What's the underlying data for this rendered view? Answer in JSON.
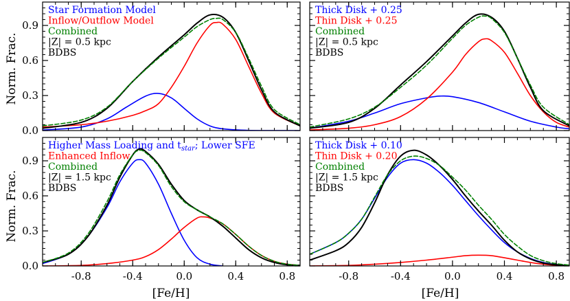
{
  "figure": {
    "ylabel": "Norm. Frac.",
    "xlabel": "[Fe/H]"
  },
  "colors": {
    "blue": "#0000ff",
    "red": "#ff0000",
    "green": "#008000",
    "black": "#000000"
  },
  "chart_data": [
    {
      "type": "line",
      "panel": "top-left",
      "xlim": [
        -1.1,
        0.9
      ],
      "ylim": [
        0.0,
        1.1
      ],
      "xticks": [
        -0.8,
        -0.4,
        0.0,
        0.4,
        0.8
      ],
      "xticklabels": [
        "-0.8",
        "-0.4",
        "0.0",
        "0.4",
        "0.8"
      ],
      "yticks": [
        0.0,
        0.3,
        0.6,
        0.9
      ],
      "yticklabels": [
        "0.0",
        "0.3",
        "0.6",
        "0.9"
      ],
      "show_xticklabels": false,
      "show_yticklabels": true,
      "legend": [
        {
          "text": "Star Formation Model",
          "color": "blue"
        },
        {
          "text": "Inflow/Outflow Model",
          "color": "red"
        },
        {
          "text": "Combined",
          "color": "green"
        },
        {
          "text": "|Z| = 0.5 kpc",
          "color": "black"
        },
        {
          "text": "BDBS",
          "color": "black"
        }
      ],
      "series": [
        {
          "name": "Star Formation Model",
          "color": "blue",
          "style": "solid",
          "width": 1.6,
          "x": [
            -1.1,
            -0.8,
            -0.6,
            -0.45,
            -0.3,
            -0.2,
            -0.1,
            0.0,
            0.1,
            0.2,
            0.3,
            0.5,
            0.9
          ],
          "y": [
            0.005,
            0.03,
            0.1,
            0.2,
            0.295,
            0.318,
            0.28,
            0.19,
            0.1,
            0.04,
            0.015,
            0.002,
            0.0
          ]
        },
        {
          "name": "Inflow/Outflow Model",
          "color": "red",
          "style": "solid",
          "width": 1.6,
          "x": [
            -1.1,
            -0.8,
            -0.6,
            -0.4,
            -0.3,
            -0.2,
            -0.1,
            0.0,
            0.1,
            0.2,
            0.25,
            0.3,
            0.4,
            0.5,
            0.6,
            0.7,
            0.9
          ],
          "y": [
            0.03,
            0.05,
            0.08,
            0.13,
            0.17,
            0.23,
            0.37,
            0.55,
            0.75,
            0.9,
            0.925,
            0.91,
            0.78,
            0.55,
            0.32,
            0.15,
            0.04
          ]
        },
        {
          "name": "Combined",
          "color": "green",
          "style": "dashed",
          "width": 1.6,
          "x": [
            -1.1,
            -0.8,
            -0.6,
            -0.4,
            -0.2,
            0.0,
            0.1,
            0.2,
            0.25,
            0.3,
            0.4,
            0.5,
            0.6,
            0.7,
            0.9
          ],
          "y": [
            0.04,
            0.09,
            0.2,
            0.42,
            0.62,
            0.8,
            0.89,
            0.95,
            0.96,
            0.95,
            0.84,
            0.62,
            0.38,
            0.18,
            0.05
          ]
        },
        {
          "name": "BDBS",
          "color": "black",
          "style": "solid",
          "width": 2.0,
          "x": [
            -1.1,
            -0.8,
            -0.6,
            -0.4,
            -0.2,
            0.0,
            0.1,
            0.2,
            0.3,
            0.4,
            0.5,
            0.6,
            0.7,
            0.9
          ],
          "y": [
            0.02,
            0.07,
            0.19,
            0.42,
            0.63,
            0.82,
            0.92,
            0.99,
            0.97,
            0.84,
            0.6,
            0.35,
            0.16,
            0.04
          ]
        }
      ]
    },
    {
      "type": "line",
      "panel": "top-right",
      "xlim": [
        -1.1,
        0.9
      ],
      "ylim": [
        0.0,
        1.1
      ],
      "xticks": [
        -0.8,
        -0.4,
        0.0,
        0.4,
        0.8
      ],
      "xticklabels": [
        "-0.8",
        "-0.4",
        "0.0",
        "0.4",
        "0.8"
      ],
      "yticks": [
        0.0,
        0.3,
        0.6,
        0.9
      ],
      "yticklabels": [
        "0.0",
        "0.3",
        "0.6",
        "0.9"
      ],
      "show_xticklabels": false,
      "show_yticklabels": false,
      "legend": [
        {
          "text": "Thick Disk + 0.25",
          "color": "blue"
        },
        {
          "text": "Thin Disk + 0.25",
          "color": "red"
        },
        {
          "text": "Combined",
          "color": "green"
        },
        {
          "text": "|Z| = 0.5 kpc",
          "color": "black"
        },
        {
          "text": "BDBS",
          "color": "black"
        }
      ],
      "series": [
        {
          "name": "Thick Disk + 0.25",
          "color": "blue",
          "style": "solid",
          "width": 1.6,
          "x": [
            -1.1,
            -0.8,
            -0.6,
            -0.4,
            -0.2,
            -0.1,
            0.0,
            0.2,
            0.4,
            0.6,
            0.8,
            0.9
          ],
          "y": [
            0.02,
            0.08,
            0.15,
            0.23,
            0.28,
            0.295,
            0.29,
            0.24,
            0.16,
            0.08,
            0.03,
            0.015
          ]
        },
        {
          "name": "Thin Disk + 0.25",
          "color": "red",
          "style": "solid",
          "width": 1.6,
          "x": [
            -1.1,
            -0.8,
            -0.6,
            -0.4,
            -0.2,
            0.0,
            0.1,
            0.2,
            0.25,
            0.3,
            0.4,
            0.5,
            0.6,
            0.7,
            0.8,
            0.9
          ],
          "y": [
            0.005,
            0.02,
            0.05,
            0.12,
            0.27,
            0.5,
            0.65,
            0.76,
            0.785,
            0.77,
            0.67,
            0.49,
            0.3,
            0.16,
            0.07,
            0.03
          ]
        },
        {
          "name": "Combined",
          "color": "green",
          "style": "dashed",
          "width": 1.6,
          "x": [
            -1.1,
            -0.8,
            -0.6,
            -0.4,
            -0.2,
            0.0,
            0.1,
            0.2,
            0.25,
            0.3,
            0.4,
            0.5,
            0.6,
            0.7,
            0.9
          ],
          "y": [
            0.03,
            0.1,
            0.2,
            0.37,
            0.56,
            0.79,
            0.9,
            0.97,
            0.98,
            0.96,
            0.84,
            0.62,
            0.39,
            0.2,
            0.05
          ]
        },
        {
          "name": "BDBS",
          "color": "black",
          "style": "solid",
          "width": 2.0,
          "x": [
            -1.1,
            -0.8,
            -0.6,
            -0.4,
            -0.2,
            0.0,
            0.1,
            0.2,
            0.3,
            0.4,
            0.5,
            0.6,
            0.7,
            0.9
          ],
          "y": [
            0.02,
            0.07,
            0.19,
            0.39,
            0.59,
            0.81,
            0.92,
            0.995,
            0.97,
            0.85,
            0.62,
            0.37,
            0.17,
            0.04
          ]
        }
      ]
    },
    {
      "type": "line",
      "panel": "bottom-left",
      "xlim": [
        -1.1,
        0.9
      ],
      "ylim": [
        0.0,
        1.1
      ],
      "xticks": [
        -0.8,
        -0.4,
        0.0,
        0.4,
        0.8
      ],
      "xticklabels": [
        "-0.8",
        "-0.4",
        "0.0",
        "0.4",
        "0.8"
      ],
      "yticks": [
        0.0,
        0.3,
        0.6,
        0.9
      ],
      "yticklabels": [
        "0.0",
        "0.3",
        "0.6",
        "0.9"
      ],
      "show_xticklabels": true,
      "show_yticklabels": true,
      "legend": [
        {
          "text": "Higher Mass Loading and t",
          "sub": "star",
          "tail": "; Lower SFE",
          "color": "blue"
        },
        {
          "text": "Enhanced Inflow",
          "color": "red"
        },
        {
          "text": "Combined",
          "color": "green"
        },
        {
          "text": "|Z| = 1.5 kpc",
          "color": "black"
        },
        {
          "text": "BDBS",
          "color": "black"
        }
      ],
      "series": [
        {
          "name": "Higher Mass Loading and tstar; Lower SFE",
          "color": "blue",
          "style": "solid",
          "width": 1.6,
          "x": [
            -1.1,
            -0.9,
            -0.75,
            -0.6,
            -0.5,
            -0.4,
            -0.35,
            -0.3,
            -0.2,
            -0.1,
            0.0,
            0.1,
            0.2,
            0.3
          ],
          "y": [
            0.02,
            0.1,
            0.25,
            0.5,
            0.72,
            0.88,
            0.91,
            0.88,
            0.7,
            0.45,
            0.22,
            0.07,
            0.015,
            0.0
          ]
        },
        {
          "name": "Enhanced Inflow",
          "color": "red",
          "style": "solid",
          "width": 1.6,
          "x": [
            -1.1,
            -0.8,
            -0.6,
            -0.4,
            -0.3,
            -0.2,
            -0.1,
            0.0,
            0.1,
            0.15,
            0.2,
            0.3,
            0.4,
            0.5,
            0.6,
            0.7,
            0.8,
            0.9
          ],
          "y": [
            0.0,
            0.005,
            0.02,
            0.05,
            0.08,
            0.14,
            0.23,
            0.33,
            0.41,
            0.42,
            0.41,
            0.36,
            0.27,
            0.17,
            0.09,
            0.04,
            0.015,
            0.005
          ]
        },
        {
          "name": "Combined",
          "color": "green",
          "style": "dashed",
          "width": 1.6,
          "x": [
            -1.1,
            -0.9,
            -0.75,
            -0.6,
            -0.5,
            -0.4,
            -0.35,
            -0.3,
            -0.2,
            -0.1,
            0.0,
            0.1,
            0.2,
            0.3,
            0.4,
            0.5,
            0.6,
            0.7,
            0.8,
            0.9
          ],
          "y": [
            0.03,
            0.11,
            0.27,
            0.55,
            0.78,
            0.95,
            0.99,
            0.97,
            0.86,
            0.68,
            0.55,
            0.48,
            0.42,
            0.36,
            0.27,
            0.17,
            0.09,
            0.04,
            0.015,
            0.005
          ]
        },
        {
          "name": "BDBS",
          "color": "black",
          "style": "solid",
          "width": 2.0,
          "x": [
            -1.1,
            -0.9,
            -0.75,
            -0.6,
            -0.5,
            -0.4,
            -0.35,
            -0.3,
            -0.2,
            -0.1,
            0.0,
            0.1,
            0.2,
            0.3,
            0.4,
            0.5,
            0.6,
            0.7,
            0.8,
            0.9
          ],
          "y": [
            0.03,
            0.1,
            0.25,
            0.52,
            0.76,
            0.95,
            1.0,
            0.98,
            0.87,
            0.7,
            0.56,
            0.48,
            0.42,
            0.34,
            0.24,
            0.14,
            0.07,
            0.03,
            0.01,
            0.005
          ]
        }
      ]
    },
    {
      "type": "line",
      "panel": "bottom-right",
      "xlim": [
        -1.1,
        0.9
      ],
      "ylim": [
        0.0,
        1.1
      ],
      "xticks": [
        -0.8,
        -0.4,
        0.0,
        0.4,
        0.8
      ],
      "xticklabels": [
        "-0.8",
        "-0.4",
        "0.0",
        "0.4",
        "0.8"
      ],
      "yticks": [
        0.0,
        0.3,
        0.6,
        0.9
      ],
      "yticklabels": [
        "0.0",
        "0.3",
        "0.6",
        "0.9"
      ],
      "show_xticklabels": true,
      "show_yticklabels": false,
      "legend": [
        {
          "text": "Thick Disk + 0.10",
          "color": "blue"
        },
        {
          "text": "Thin Disk + 0.20",
          "color": "red"
        },
        {
          "text": "Combined",
          "color": "green"
        },
        {
          "text": "|Z| = 1.5 kpc",
          "color": "black"
        },
        {
          "text": "BDBS",
          "color": "black"
        }
      ],
      "series": [
        {
          "name": "Thick Disk + 0.10",
          "color": "blue",
          "style": "solid",
          "width": 1.6,
          "x": [
            -1.1,
            -0.9,
            -0.8,
            -0.7,
            -0.6,
            -0.5,
            -0.4,
            -0.3,
            -0.2,
            -0.1,
            0.0,
            0.1,
            0.2,
            0.3,
            0.4,
            0.5,
            0.6,
            0.7,
            0.8,
            0.9
          ],
          "y": [
            0.1,
            0.2,
            0.28,
            0.4,
            0.58,
            0.76,
            0.88,
            0.91,
            0.88,
            0.8,
            0.69,
            0.56,
            0.43,
            0.31,
            0.2,
            0.12,
            0.065,
            0.03,
            0.012,
            0.005
          ]
        },
        {
          "name": "Thin Disk + 0.20",
          "color": "red",
          "style": "solid",
          "width": 1.6,
          "x": [
            -1.1,
            -0.8,
            -0.6,
            -0.4,
            -0.2,
            0.0,
            0.1,
            0.2,
            0.3,
            0.4,
            0.5,
            0.6,
            0.7,
            0.8,
            0.9
          ],
          "y": [
            0.0,
            0.005,
            0.015,
            0.03,
            0.05,
            0.075,
            0.088,
            0.092,
            0.088,
            0.07,
            0.05,
            0.03,
            0.015,
            0.006,
            0.002
          ]
        },
        {
          "name": "Combined",
          "color": "green",
          "style": "dashed",
          "width": 1.6,
          "x": [
            -1.1,
            -0.9,
            -0.8,
            -0.7,
            -0.6,
            -0.5,
            -0.4,
            -0.3,
            -0.2,
            -0.1,
            0.0,
            0.1,
            0.2,
            0.3,
            0.4,
            0.5,
            0.6,
            0.7,
            0.8,
            0.9
          ],
          "y": [
            0.1,
            0.2,
            0.28,
            0.4,
            0.59,
            0.78,
            0.9,
            0.94,
            0.92,
            0.86,
            0.76,
            0.65,
            0.52,
            0.4,
            0.27,
            0.17,
            0.09,
            0.045,
            0.02,
            0.007
          ]
        },
        {
          "name": "BDBS",
          "color": "black",
          "style": "solid",
          "width": 2.0,
          "x": [
            -1.1,
            -0.9,
            -0.8,
            -0.7,
            -0.6,
            -0.5,
            -0.4,
            -0.3,
            -0.2,
            -0.1,
            0.0,
            0.1,
            0.2,
            0.3,
            0.4,
            0.5,
            0.6,
            0.7,
            0.8,
            0.9
          ],
          "y": [
            0.05,
            0.13,
            0.2,
            0.33,
            0.54,
            0.78,
            0.94,
            0.99,
            0.95,
            0.86,
            0.74,
            0.6,
            0.47,
            0.35,
            0.22,
            0.12,
            0.06,
            0.025,
            0.01,
            0.003
          ]
        }
      ]
    }
  ]
}
